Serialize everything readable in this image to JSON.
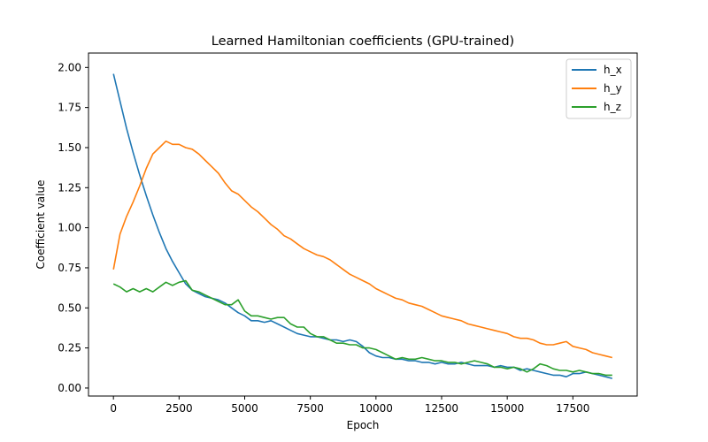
{
  "chart_data": {
    "type": "line",
    "title": "Learned Hamiltonian coefficients (GPU-trained)",
    "xlabel": "Epoch",
    "ylabel": "Coefficient value",
    "xlim": [
      -950,
      19950
    ],
    "ylim": [
      -0.05,
      2.09
    ],
    "xticks": [
      0,
      2500,
      5000,
      7500,
      10000,
      12500,
      15000,
      17500
    ],
    "xtick_labels": [
      "0",
      "2500",
      "5000",
      "7500",
      "10000",
      "12500",
      "15000",
      "17500"
    ],
    "yticks": [
      0.0,
      0.25,
      0.5,
      0.75,
      1.0,
      1.25,
      1.5,
      1.75,
      2.0
    ],
    "ytick_labels": [
      "0.00",
      "0.25",
      "0.50",
      "0.75",
      "1.00",
      "1.25",
      "1.50",
      "1.75",
      "2.00"
    ],
    "grid": false,
    "legend_position": "top-right",
    "series": [
      {
        "name": "h_x",
        "color": "#1f77b4",
        "x": [
          0,
          250,
          500,
          750,
          1000,
          1250,
          1500,
          1750,
          2000,
          2250,
          2500,
          2750,
          3000,
          3250,
          3500,
          3750,
          4000,
          4250,
          4500,
          4750,
          5000,
          5250,
          5500,
          5750,
          6000,
          6250,
          6500,
          6750,
          7000,
          7250,
          7500,
          7750,
          8000,
          8250,
          8500,
          8750,
          9000,
          9250,
          9500,
          9750,
          10000,
          10250,
          10500,
          10750,
          11000,
          11250,
          11500,
          11750,
          12000,
          12250,
          12500,
          12750,
          13000,
          13250,
          13500,
          13750,
          14000,
          14250,
          14500,
          14750,
          15000,
          15250,
          15500,
          15750,
          16000,
          16250,
          16500,
          16750,
          17000,
          17250,
          17500,
          17750,
          18000,
          18250,
          18500,
          18750,
          19000
        ],
        "y": [
          1.96,
          1.79,
          1.62,
          1.47,
          1.33,
          1.2,
          1.08,
          0.97,
          0.87,
          0.79,
          0.72,
          0.65,
          0.61,
          0.59,
          0.57,
          0.56,
          0.55,
          0.53,
          0.5,
          0.47,
          0.45,
          0.42,
          0.42,
          0.41,
          0.42,
          0.4,
          0.38,
          0.36,
          0.34,
          0.33,
          0.32,
          0.32,
          0.31,
          0.3,
          0.3,
          0.29,
          0.3,
          0.29,
          0.26,
          0.22,
          0.2,
          0.19,
          0.19,
          0.18,
          0.18,
          0.17,
          0.17,
          0.16,
          0.16,
          0.15,
          0.16,
          0.15,
          0.15,
          0.16,
          0.15,
          0.14,
          0.14,
          0.14,
          0.13,
          0.14,
          0.13,
          0.13,
          0.11,
          0.12,
          0.11,
          0.1,
          0.09,
          0.08,
          0.08,
          0.07,
          0.09,
          0.09,
          0.1,
          0.09,
          0.08,
          0.07,
          0.06
        ]
      },
      {
        "name": "h_y",
        "color": "#ff7f0e",
        "x": [
          0,
          250,
          500,
          750,
          1000,
          1250,
          1500,
          1750,
          2000,
          2250,
          2500,
          2750,
          3000,
          3250,
          3500,
          3750,
          4000,
          4250,
          4500,
          4750,
          5000,
          5250,
          5500,
          5750,
          6000,
          6250,
          6500,
          6750,
          7000,
          7250,
          7500,
          7750,
          8000,
          8250,
          8500,
          8750,
          9000,
          9250,
          9500,
          9750,
          10000,
          10250,
          10500,
          10750,
          11000,
          11250,
          11500,
          11750,
          12000,
          12250,
          12500,
          12750,
          13000,
          13250,
          13500,
          13750,
          14000,
          14250,
          14500,
          14750,
          15000,
          15250,
          15500,
          15750,
          16000,
          16250,
          16500,
          16750,
          17000,
          17250,
          17500,
          17750,
          18000,
          18250,
          18500,
          18750,
          19000
        ],
        "y": [
          0.74,
          0.96,
          1.07,
          1.16,
          1.26,
          1.37,
          1.46,
          1.5,
          1.54,
          1.52,
          1.52,
          1.5,
          1.49,
          1.46,
          1.42,
          1.38,
          1.34,
          1.28,
          1.23,
          1.21,
          1.17,
          1.13,
          1.1,
          1.06,
          1.02,
          0.99,
          0.95,
          0.93,
          0.9,
          0.87,
          0.85,
          0.83,
          0.82,
          0.8,
          0.77,
          0.74,
          0.71,
          0.69,
          0.67,
          0.65,
          0.62,
          0.6,
          0.58,
          0.56,
          0.55,
          0.53,
          0.52,
          0.51,
          0.49,
          0.47,
          0.45,
          0.44,
          0.43,
          0.42,
          0.4,
          0.39,
          0.38,
          0.37,
          0.36,
          0.35,
          0.34,
          0.32,
          0.31,
          0.31,
          0.3,
          0.28,
          0.27,
          0.27,
          0.28,
          0.29,
          0.26,
          0.25,
          0.24,
          0.22,
          0.21,
          0.2,
          0.19
        ]
      },
      {
        "name": "h_z",
        "color": "#2ca02c",
        "x": [
          0,
          250,
          500,
          750,
          1000,
          1250,
          1500,
          1750,
          2000,
          2250,
          2500,
          2750,
          3000,
          3250,
          3500,
          3750,
          4000,
          4250,
          4500,
          4750,
          5000,
          5250,
          5500,
          5750,
          6000,
          6250,
          6500,
          6750,
          7000,
          7250,
          7500,
          7750,
          8000,
          8250,
          8500,
          8750,
          9000,
          9250,
          9500,
          9750,
          10000,
          10250,
          10500,
          10750,
          11000,
          11250,
          11500,
          11750,
          12000,
          12250,
          12500,
          12750,
          13000,
          13250,
          13500,
          13750,
          14000,
          14250,
          14500,
          14750,
          15000,
          15250,
          15500,
          15750,
          16000,
          16250,
          16500,
          16750,
          17000,
          17250,
          17500,
          17750,
          18000,
          18250,
          18500,
          18750,
          19000
        ],
        "y": [
          0.65,
          0.63,
          0.6,
          0.62,
          0.6,
          0.62,
          0.6,
          0.63,
          0.66,
          0.64,
          0.66,
          0.67,
          0.61,
          0.6,
          0.58,
          0.56,
          0.54,
          0.52,
          0.52,
          0.55,
          0.48,
          0.45,
          0.45,
          0.44,
          0.43,
          0.44,
          0.44,
          0.4,
          0.38,
          0.38,
          0.34,
          0.32,
          0.32,
          0.3,
          0.28,
          0.28,
          0.27,
          0.27,
          0.25,
          0.25,
          0.24,
          0.22,
          0.2,
          0.18,
          0.19,
          0.18,
          0.18,
          0.19,
          0.18,
          0.17,
          0.17,
          0.16,
          0.16,
          0.15,
          0.16,
          0.17,
          0.16,
          0.15,
          0.13,
          0.13,
          0.12,
          0.13,
          0.12,
          0.1,
          0.12,
          0.15,
          0.14,
          0.12,
          0.11,
          0.11,
          0.1,
          0.11,
          0.1,
          0.09,
          0.09,
          0.08,
          0.08
        ]
      }
    ]
  }
}
